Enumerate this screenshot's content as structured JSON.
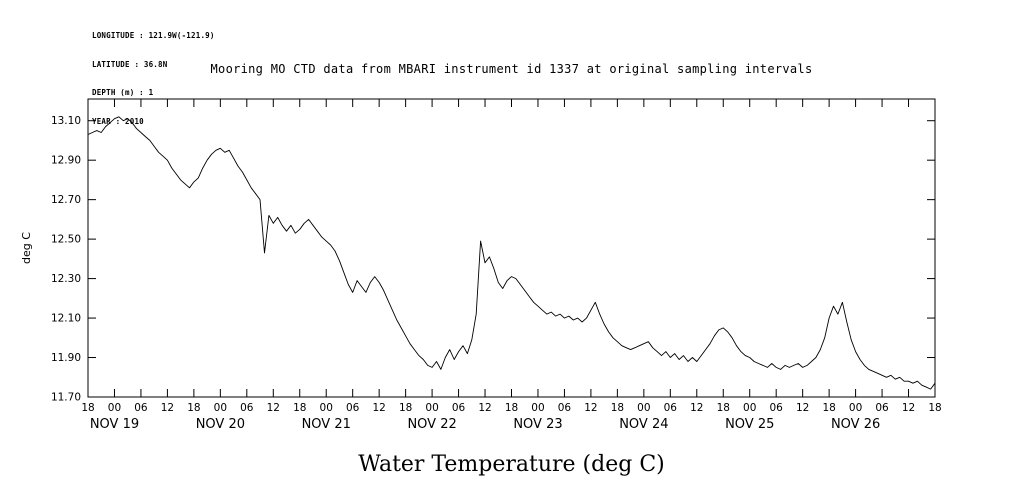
{
  "meta": {
    "longitude": "LONGITUDE : 121.9W(-121.9)",
    "latitude": "LATITUDE : 36.8N",
    "depth": "DEPTH (m) : 1",
    "year": "YEAR : 2010"
  },
  "chart_data": {
    "type": "line",
    "title": "Mooring MO CTD data from MBARI instrument id 1337 at original sampling intervals",
    "xlabel": "Water Temperature (deg C)",
    "ylabel": "deg C",
    "ylim": [
      11.7,
      13.21
    ],
    "yticks": [
      11.7,
      11.9,
      12.1,
      12.3,
      12.5,
      12.7,
      12.9,
      13.1
    ],
    "grid": false,
    "legend": false,
    "x_hours_span": 192,
    "x_tick_step_hours": 6,
    "x_tick_labels": [
      "18",
      "00",
      "06",
      "12",
      "18",
      "00",
      "06",
      "12",
      "18",
      "00",
      "06",
      "12",
      "18",
      "00",
      "06",
      "12",
      "18",
      "00",
      "06",
      "12",
      "18",
      "00",
      "06",
      "12",
      "18",
      "00",
      "06",
      "12",
      "18",
      "00",
      "06",
      "12",
      "18"
    ],
    "x_day_labels": [
      {
        "label": "NOV 19",
        "tick_index": 1
      },
      {
        "label": "NOV 20",
        "tick_index": 5
      },
      {
        "label": "NOV 21",
        "tick_index": 9
      },
      {
        "label": "NOV 22",
        "tick_index": 13
      },
      {
        "label": "NOV 23",
        "tick_index": 17
      },
      {
        "label": "NOV 24",
        "tick_index": 21
      },
      {
        "label": "NOV 25",
        "tick_index": 25
      },
      {
        "label": "NOV 26",
        "tick_index": 29
      }
    ],
    "series": [
      {
        "name": "water_temperature_deg_C",
        "step_hours": 1,
        "values": [
          13.03,
          13.04,
          13.05,
          13.04,
          13.07,
          13.09,
          13.11,
          13.12,
          13.1,
          13.11,
          13.09,
          13.06,
          13.04,
          13.02,
          13.0,
          12.97,
          12.94,
          12.92,
          12.9,
          12.86,
          12.83,
          12.8,
          12.78,
          12.76,
          12.79,
          12.81,
          12.86,
          12.9,
          12.93,
          12.95,
          12.96,
          12.94,
          12.95,
          12.91,
          12.87,
          12.84,
          12.8,
          12.76,
          12.73,
          12.7,
          12.43,
          12.62,
          12.58,
          12.61,
          12.57,
          12.54,
          12.57,
          12.53,
          12.55,
          12.58,
          12.6,
          12.57,
          12.54,
          12.51,
          12.49,
          12.47,
          12.44,
          12.39,
          12.33,
          12.27,
          12.23,
          12.29,
          12.26,
          12.23,
          12.28,
          12.31,
          12.28,
          12.24,
          12.19,
          12.14,
          12.09,
          12.05,
          12.01,
          11.97,
          11.94,
          11.91,
          11.89,
          11.86,
          11.85,
          11.88,
          11.84,
          11.9,
          11.94,
          11.89,
          11.93,
          11.96,
          11.92,
          11.99,
          12.12,
          12.49,
          12.38,
          12.41,
          12.35,
          12.28,
          12.25,
          12.29,
          12.31,
          12.3,
          12.27,
          12.24,
          12.21,
          12.18,
          12.16,
          12.14,
          12.12,
          12.13,
          12.11,
          12.12,
          12.1,
          12.11,
          12.09,
          12.1,
          12.08,
          12.1,
          12.14,
          12.18,
          12.12,
          12.07,
          12.03,
          12.0,
          11.98,
          11.96,
          11.95,
          11.94,
          11.95,
          11.96,
          11.97,
          11.98,
          11.95,
          11.93,
          11.91,
          11.93,
          11.9,
          11.92,
          11.89,
          11.91,
          11.88,
          11.9,
          11.88,
          11.91,
          11.94,
          11.97,
          12.01,
          12.04,
          12.05,
          12.03,
          12.0,
          11.96,
          11.93,
          11.91,
          11.9,
          11.88,
          11.87,
          11.86,
          11.85,
          11.87,
          11.85,
          11.84,
          11.86,
          11.85,
          11.86,
          11.87,
          11.85,
          11.86,
          11.88,
          11.9,
          11.94,
          12.0,
          12.1,
          12.16,
          12.12,
          12.18,
          12.08,
          11.99,
          11.93,
          11.89,
          11.86,
          11.84,
          11.83,
          11.82,
          11.81,
          11.8,
          11.81,
          11.79,
          11.8,
          11.78,
          11.78,
          11.77,
          11.78,
          11.76,
          11.75,
          11.74,
          11.77
        ]
      }
    ]
  }
}
